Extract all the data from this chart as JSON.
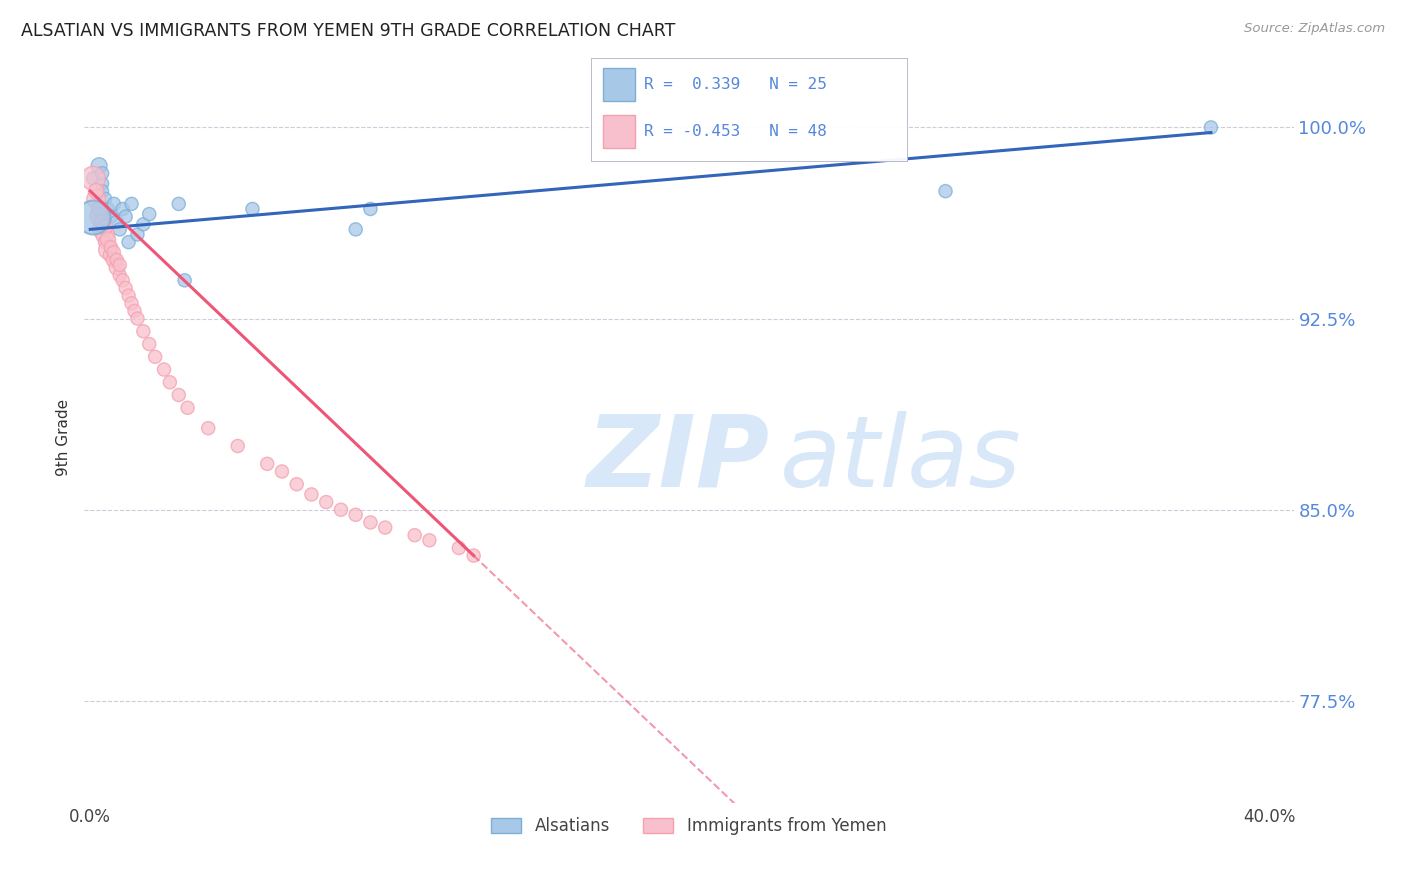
{
  "title": "ALSATIAN VS IMMIGRANTS FROM YEMEN 9TH GRADE CORRELATION CHART",
  "source": "Source: ZipAtlas.com",
  "ylabel": "9th Grade",
  "ytick_labels": [
    "100.0%",
    "92.5%",
    "85.0%",
    "77.5%"
  ],
  "ytick_values": [
    1.0,
    0.925,
    0.85,
    0.775
  ],
  "ymin": 0.735,
  "ymax": 1.022,
  "xmin": -0.002,
  "xmax": 0.408,
  "blue_color": "#7BAFD4",
  "pink_color": "#F4A0B0",
  "blue_fill": "#A8C8E8",
  "pink_fill": "#F8C0CC",
  "blue_line_color": "#3366BB",
  "pink_line_color": "#EE5577",
  "grid_color": "#CCCCDD",
  "watermark_color": "#D8E8F8",
  "ytick_color": "#5588DD",
  "title_color": "#222222",
  "source_color": "#999999",
  "legend_blue_label": "R =  0.339   N = 25",
  "legend_pink_label": "R = -0.453   N = 48",
  "blue_scatter_x": [
    0.001,
    0.003,
    0.004,
    0.004,
    0.004,
    0.005,
    0.006,
    0.007,
    0.008,
    0.009,
    0.01,
    0.011,
    0.012,
    0.013,
    0.014,
    0.016,
    0.018,
    0.02,
    0.03,
    0.032,
    0.055,
    0.09,
    0.095,
    0.29,
    0.38
  ],
  "blue_scatter_y": [
    0.98,
    0.985,
    0.978,
    0.982,
    0.975,
    0.972,
    0.968,
    0.965,
    0.97,
    0.963,
    0.96,
    0.968,
    0.965,
    0.955,
    0.97,
    0.958,
    0.962,
    0.966,
    0.97,
    0.94,
    0.968,
    0.96,
    0.968,
    0.975,
    1.0
  ],
  "blue_scatter_sizes": [
    90,
    130,
    90,
    90,
    90,
    90,
    90,
    90,
    90,
    90,
    90,
    90,
    90,
    90,
    90,
    90,
    90,
    90,
    90,
    90,
    90,
    90,
    90,
    90,
    90
  ],
  "blue_large_idx": [
    0,
    5,
    10
  ],
  "blue_xlarge_idx": [],
  "pink_scatter_x": [
    0.001,
    0.002,
    0.002,
    0.003,
    0.003,
    0.004,
    0.004,
    0.005,
    0.005,
    0.005,
    0.006,
    0.006,
    0.007,
    0.007,
    0.008,
    0.008,
    0.009,
    0.009,
    0.01,
    0.01,
    0.011,
    0.012,
    0.013,
    0.014,
    0.015,
    0.016,
    0.018,
    0.02,
    0.022,
    0.025,
    0.027,
    0.03,
    0.033,
    0.04,
    0.05,
    0.06,
    0.065,
    0.07,
    0.075,
    0.08,
    0.085,
    0.09,
    0.095,
    0.1,
    0.11,
    0.115,
    0.125,
    0.13
  ],
  "pink_scatter_y": [
    0.98,
    0.972,
    0.975,
    0.965,
    0.968,
    0.96,
    0.963,
    0.958,
    0.961,
    0.955,
    0.952,
    0.956,
    0.95,
    0.953,
    0.948,
    0.951,
    0.945,
    0.948,
    0.942,
    0.946,
    0.94,
    0.937,
    0.934,
    0.931,
    0.928,
    0.925,
    0.92,
    0.915,
    0.91,
    0.905,
    0.9,
    0.895,
    0.89,
    0.882,
    0.875,
    0.868,
    0.865,
    0.86,
    0.856,
    0.853,
    0.85,
    0.848,
    0.845,
    0.843,
    0.84,
    0.838,
    0.835,
    0.832
  ],
  "pink_scatter_sizes": [
    300,
    180,
    120,
    180,
    120,
    180,
    120,
    180,
    120,
    90,
    180,
    120,
    120,
    90,
    120,
    90,
    120,
    90,
    90,
    90,
    90,
    90,
    90,
    90,
    90,
    90,
    90,
    90,
    90,
    90,
    90,
    90,
    90,
    90,
    90,
    90,
    90,
    90,
    90,
    90,
    90,
    90,
    90,
    90,
    90,
    90,
    90,
    90
  ],
  "pink_line_x_end_solid": 0.13,
  "pink_line_x_end_dash": 0.408
}
